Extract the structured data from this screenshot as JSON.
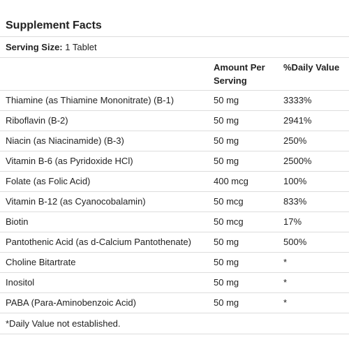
{
  "title": "Supplement Facts",
  "serving": {
    "label": "Serving Size:",
    "value": "1 Tablet"
  },
  "columns": {
    "amount_line1": "Amount Per",
    "amount_line2": "Serving",
    "daily_value": "%Daily Value"
  },
  "rows": [
    {
      "name": "Thiamine (as Thiamine Mononitrate) (B-1)",
      "amount": "50 mg",
      "dv": "3333%"
    },
    {
      "name": "Riboflavin (B-2)",
      "amount": "50 mg",
      "dv": "2941%"
    },
    {
      "name": "Niacin (as Niacinamide) (B-3)",
      "amount": "50 mg",
      "dv": "250%"
    },
    {
      "name": "Vitamin B-6 (as Pyridoxide HCl)",
      "amount": "50 mg",
      "dv": "2500%"
    },
    {
      "name": "Folate (as Folic Acid)",
      "amount": "400 mcg",
      "dv": "100%"
    },
    {
      "name": "Vitamin B-12 (as Cyanocobalamin)",
      "amount": "50 mcg",
      "dv": "833%"
    },
    {
      "name": "Biotin",
      "amount": "50 mcg",
      "dv": "17%"
    },
    {
      "name": "Pantothenic Acid (as d-Calcium Pantothenate)",
      "amount": "50 mg",
      "dv": "500%"
    },
    {
      "name": "Choline Bitartrate",
      "amount": "50 mg",
      "dv": "*"
    },
    {
      "name": "Inositol",
      "amount": "50 mg",
      "dv": "*"
    },
    {
      "name": "PABA (Para-Aminobenzoic Acid)",
      "amount": "50 mg",
      "dv": "*"
    }
  ],
  "footnote": "*Daily Value not established."
}
